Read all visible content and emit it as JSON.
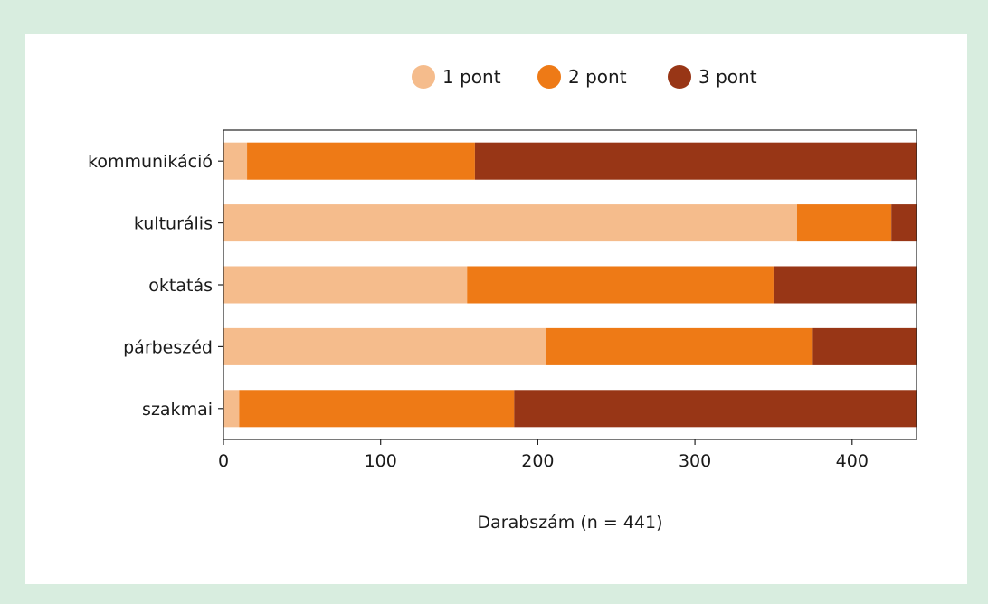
{
  "chart_data": {
    "type": "bar",
    "orientation": "horizontal",
    "stacked": true,
    "categories": [
      "kommunikáció",
      "kulturális",
      "oktatás",
      "párbeszéd",
      "szakmai"
    ],
    "series": [
      {
        "name": "1 pont",
        "color": "#f5bc8c",
        "values": [
          15,
          365,
          155,
          205,
          10
        ]
      },
      {
        "name": "2 pont",
        "color": "#ee7a16",
        "values": [
          145,
          60,
          195,
          170,
          175
        ]
      },
      {
        "name": "3 pont",
        "color": "#983616",
        "values": [
          281,
          16,
          91,
          66,
          256
        ]
      }
    ],
    "xlabel": "Darabszám (n = 441)",
    "ylabel": "",
    "xlim": [
      0,
      441
    ],
    "xticks": [
      0,
      100,
      200,
      300,
      400
    ],
    "legend_position": "top",
    "grid": false
  }
}
